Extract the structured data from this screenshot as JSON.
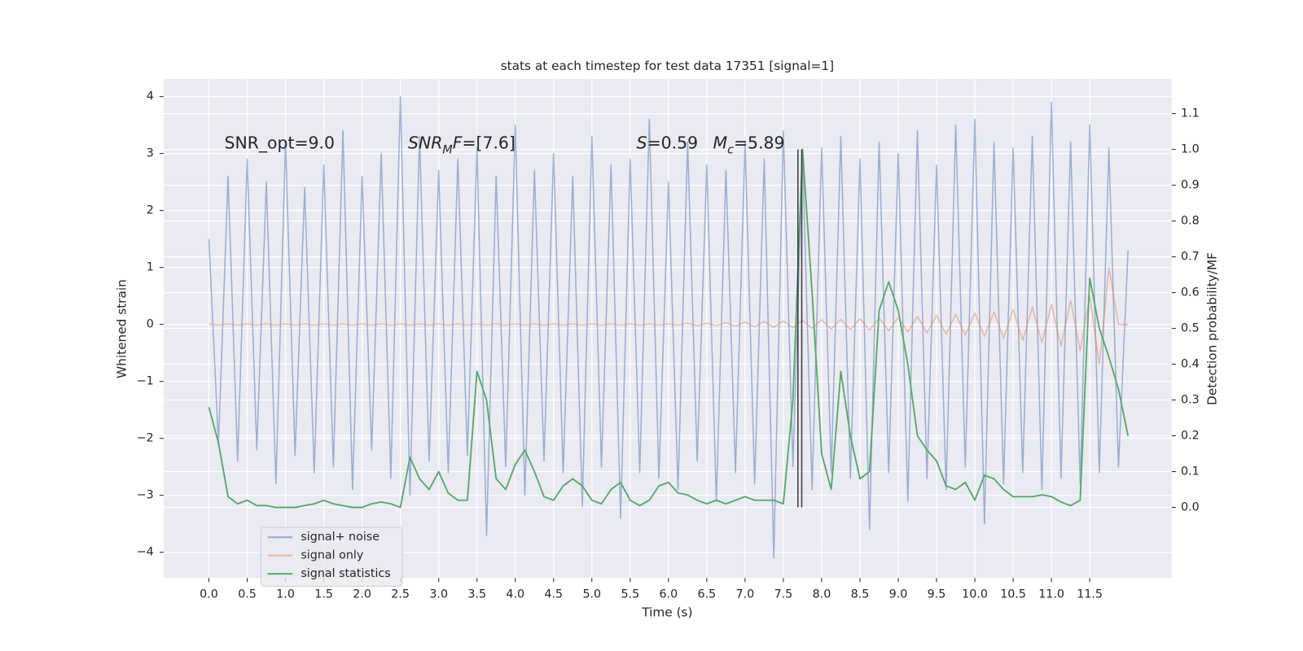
{
  "chart_data": {
    "type": "line",
    "title": "stats at each timestep for test data 17351 [signal=1]",
    "xlabel": "Time (s)",
    "ylabel": "Whitened strain",
    "y2label": "Detection probability/MF",
    "background": "#eaeaf2",
    "grid": true,
    "legend": "lower left",
    "x": [
      0,
      0.125,
      0.25,
      0.375,
      0.5,
      0.625,
      0.75,
      0.875,
      1,
      1.125,
      1.25,
      1.375,
      1.5,
      1.625,
      1.75,
      1.875,
      2,
      2.125,
      2.25,
      2.375,
      2.5,
      2.625,
      2.75,
      2.875,
      3,
      3.125,
      3.25,
      3.375,
      3.5,
      3.625,
      3.75,
      3.875,
      4,
      4.125,
      4.25,
      4.375,
      4.5,
      4.625,
      4.75,
      4.875,
      5,
      5.125,
      5.25,
      5.375,
      5.5,
      5.625,
      5.75,
      5.875,
      6,
      6.125,
      6.25,
      6.375,
      6.5,
      6.625,
      6.75,
      6.875,
      7,
      7.125,
      7.25,
      7.375,
      7.5,
      7.625,
      7.75,
      7.875,
      8,
      8.125,
      8.25,
      8.375,
      8.5,
      8.625,
      8.75,
      8.875,
      9,
      9.125,
      9.25,
      9.375,
      9.5,
      9.625,
      9.75,
      9.875,
      10,
      10.125,
      10.25,
      10.375,
      10.5,
      10.625,
      10.75,
      10.875,
      11,
      11.125,
      11.25,
      11.375,
      11.5,
      11.625,
      11.75,
      11.875,
      12
    ],
    "series": [
      {
        "name": "signal+ noise",
        "color": "#4c72b0",
        "alpha": 0.5,
        "axis": "y",
        "values": [
          1.5,
          -2.1,
          2.6,
          -2.4,
          2.9,
          -2.2,
          2.5,
          -2.8,
          3.2,
          -2.3,
          2.4,
          -2.6,
          2.8,
          -2.5,
          3.4,
          -2.9,
          2.6,
          -2.2,
          3.0,
          -2.7,
          4.0,
          -3.0,
          3.3,
          -2.4,
          2.7,
          -2.6,
          2.9,
          -2.3,
          3.1,
          -3.7,
          2.6,
          -2.5,
          3.5,
          -3.0,
          2.7,
          -2.4,
          3.0,
          -2.6,
          2.6,
          -3.2,
          3.3,
          -2.5,
          2.8,
          -3.4,
          2.9,
          -2.6,
          3.6,
          -2.7,
          2.5,
          -2.9,
          3.2,
          -2.4,
          2.8,
          -3.1,
          2.7,
          -2.6,
          3.2,
          -2.8,
          2.9,
          -4.1,
          3.4,
          -2.5,
          3.0,
          -2.9,
          3.1,
          -2.6,
          3.3,
          -2.7,
          2.9,
          -3.6,
          3.2,
          -2.6,
          3.0,
          -3.1,
          3.4,
          -2.7,
          2.8,
          -2.9,
          3.5,
          -2.5,
          3.6,
          -3.5,
          3.2,
          -2.8,
          3.1,
          -2.6,
          3.3,
          -2.9,
          3.9,
          -2.7,
          3.2,
          -2.8,
          3.5,
          -2.6,
          3.1,
          -2.5,
          1.3
        ]
      },
      {
        "name": "signal only",
        "color": "#dd8452",
        "alpha": 0.5,
        "axis": "y",
        "values": [
          0.01,
          -0.01,
          0.01,
          -0.01,
          0.01,
          -0.01,
          0.01,
          -0.01,
          0.01,
          -0.01,
          0.01,
          -0.01,
          0.01,
          -0.01,
          0.01,
          -0.01,
          0.01,
          -0.01,
          0.01,
          -0.01,
          0.01,
          -0.01,
          0.01,
          -0.01,
          0.01,
          -0.01,
          0.01,
          -0.01,
          0.01,
          -0.01,
          0.01,
          -0.01,
          0.01,
          -0.01,
          0.01,
          -0.01,
          0.01,
          -0.01,
          0.01,
          -0.01,
          0.01,
          -0.01,
          0.01,
          -0.01,
          0.01,
          -0.01,
          0.01,
          -0.01,
          0.01,
          -0.01,
          0.02,
          -0.02,
          0.02,
          -0.02,
          0.03,
          -0.03,
          0.04,
          -0.04,
          0.05,
          -0.05,
          0.06,
          -0.06,
          0.07,
          -0.07,
          0.08,
          -0.08,
          0.09,
          -0.09,
          0.1,
          -0.1,
          0.11,
          -0.11,
          0.12,
          -0.13,
          0.14,
          -0.15,
          0.16,
          -0.17,
          0.18,
          -0.19,
          0.2,
          -0.21,
          0.22,
          -0.24,
          0.26,
          -0.28,
          0.3,
          -0.32,
          0.35,
          -0.38,
          0.42,
          -0.46,
          0.5,
          -0.7,
          1.0,
          0.0,
          0.0
        ]
      },
      {
        "name": "signal statistics",
        "color": "#55a868",
        "alpha": 1,
        "axis": "y2",
        "values": [
          0.28,
          0.18,
          0.03,
          0.01,
          0.02,
          0.005,
          0.005,
          0.0,
          0.0,
          0.0,
          0.005,
          0.01,
          0.02,
          0.01,
          0.005,
          0.0,
          0.0,
          0.01,
          0.015,
          0.01,
          0.0,
          0.14,
          0.08,
          0.05,
          0.1,
          0.04,
          0.02,
          0.02,
          0.38,
          0.3,
          0.08,
          0.05,
          0.12,
          0.16,
          0.1,
          0.03,
          0.02,
          0.06,
          0.08,
          0.06,
          0.02,
          0.01,
          0.05,
          0.07,
          0.02,
          0.005,
          0.02,
          0.06,
          0.07,
          0.04,
          0.035,
          0.02,
          0.01,
          0.02,
          0.01,
          0.02,
          0.03,
          0.02,
          0.02,
          0.02,
          0.01,
          0.3,
          1.0,
          0.6,
          0.15,
          0.05,
          0.38,
          0.2,
          0.08,
          0.1,
          0.55,
          0.63,
          0.55,
          0.4,
          0.2,
          0.16,
          0.13,
          0.06,
          0.05,
          0.07,
          0.02,
          0.09,
          0.08,
          0.05,
          0.03,
          0.03,
          0.03,
          0.035,
          0.03,
          0.015,
          0.005,
          0.02,
          0.64,
          0.5,
          0.42,
          0.33,
          0.2
        ]
      }
    ],
    "vlines": {
      "x": [
        7.69,
        7.74
      ],
      "ymin": 0,
      "ymax": 1.0,
      "color": "#3a3a3a",
      "axis": "y2"
    },
    "annotations": [
      {
        "parts": [
          {
            "text": "SNR_opt=9.0"
          }
        ]
      },
      {
        "parts": [
          {
            "text": "SNR",
            "italic": true
          },
          {
            "text": "M",
            "italic": true,
            "sub": true
          },
          {
            "text": "F",
            "italic": true
          },
          {
            "text": "=[7.6]"
          }
        ]
      },
      {
        "parts": [
          {
            "text": "S",
            "italic": true
          },
          {
            "text": "=0.59"
          }
        ]
      },
      {
        "parts": [
          {
            "text": "M",
            "italic": true
          },
          {
            "text": "c",
            "italic": true,
            "sub": true
          },
          {
            "text": "=5.89"
          }
        ]
      }
    ],
    "xlim": [
      -0.59,
      12.57
    ],
    "xticks": [
      {
        "value": 0,
        "label": "0.0"
      },
      0.5,
      {
        "value": 1,
        "label": "1.0"
      },
      1.5,
      {
        "value": 2,
        "label": "2.0"
      },
      2.5,
      {
        "value": 3,
        "label": "3.0"
      },
      3.5,
      {
        "value": 4,
        "label": "4.0"
      },
      4.5,
      {
        "value": 5,
        "label": "5.0"
      },
      5.5,
      {
        "value": 6,
        "label": "6.0"
      },
      6.5,
      {
        "value": 7,
        "label": "7.0"
      },
      7.5,
      {
        "value": 8,
        "label": "8.0"
      },
      8.5,
      {
        "value": 9,
        "label": "9.0"
      },
      9.5,
      {
        "value": 10,
        "label": "10.0"
      },
      10.5,
      {
        "value": 11,
        "label": "11.0"
      },
      11.5
    ],
    "ylim": [
      -4.45,
      4.31
    ],
    "yticks": [
      {
        "value": -4,
        "label": "−4"
      },
      {
        "value": -3,
        "label": "−3"
      },
      {
        "value": -2,
        "label": "−2"
      },
      {
        "value": -1,
        "label": "−1"
      },
      0,
      1,
      2,
      3,
      4
    ],
    "y2lim": [
      -0.197,
      1.197
    ],
    "y2ticks": [
      {
        "value": 0,
        "label": "0.0"
      },
      0.1,
      0.2,
      0.3,
      0.4,
      0.5,
      0.6,
      0.7,
      0.8,
      0.9,
      {
        "value": 1,
        "label": "1.0"
      },
      1.1
    ]
  }
}
